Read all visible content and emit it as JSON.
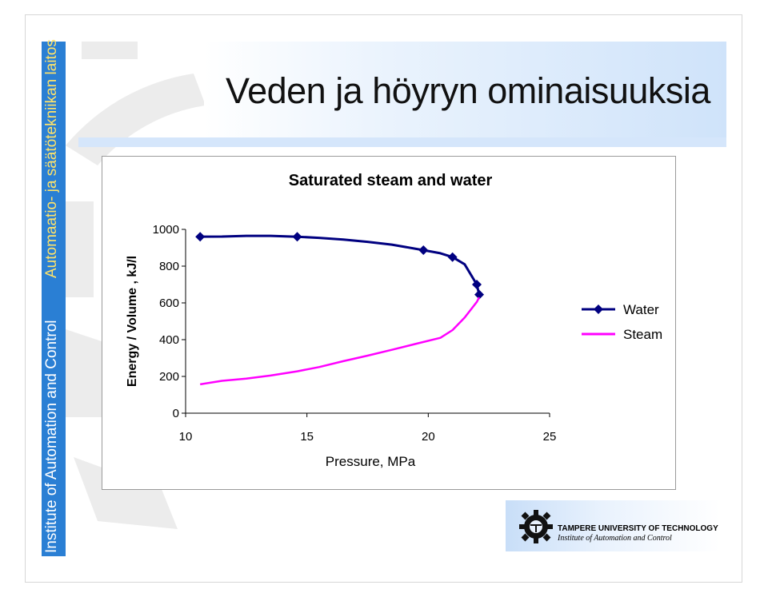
{
  "slide": {
    "title": "Veden ja höyryn ominaisuuksia",
    "side_text_institute": "Institute of Automation and Control",
    "side_text_laitos": "Automaatio- ja säätötekniikan laitos"
  },
  "footer": {
    "university": "TAMPERE UNIVERSITY OF TECHNOLOGY",
    "department": "Institute of Automation and Control"
  },
  "colors": {
    "water": "#000080",
    "steam": "#ff00ff",
    "side_bar": "#2a7fd4",
    "accent_text": "#ffe36a"
  },
  "chart_data": {
    "type": "line",
    "title": "Saturated steam and water",
    "xlabel": "Pressure,  MPa",
    "ylabel": "Energy / Volume , kJ/l",
    "xlim": [
      10,
      25
    ],
    "ylim": [
      0,
      1000
    ],
    "x_ticks": [
      "10",
      "15",
      "20",
      "25"
    ],
    "y_ticks": [
      "1000",
      "800",
      "600",
      "400",
      "200",
      "0"
    ],
    "grid": false,
    "legend_position": "right",
    "series": [
      {
        "name": "Water",
        "marker": "diamond",
        "points": [
          [
            10.6,
            960
          ],
          [
            11.5,
            961
          ],
          [
            12.5,
            965
          ],
          [
            13.5,
            965
          ],
          [
            14.6,
            960
          ],
          [
            15.5,
            954
          ],
          [
            16.5,
            945
          ],
          [
            17.5,
            932
          ],
          [
            18.5,
            917
          ],
          [
            19.8,
            887
          ],
          [
            20.5,
            870
          ],
          [
            21.0,
            849
          ],
          [
            21.5,
            810
          ],
          [
            22.0,
            700
          ],
          [
            22.1,
            645
          ]
        ],
        "marker_points": [
          [
            10.6,
            960
          ],
          [
            14.6,
            960
          ],
          [
            19.8,
            887
          ],
          [
            21.0,
            849
          ],
          [
            22.0,
            700
          ],
          [
            22.1,
            645
          ]
        ]
      },
      {
        "name": "Steam",
        "marker": "none",
        "points": [
          [
            10.6,
            157
          ],
          [
            11.5,
            176
          ],
          [
            12.5,
            188
          ],
          [
            13.5,
            205
          ],
          [
            14.6,
            228
          ],
          [
            15.5,
            251
          ],
          [
            16.5,
            283
          ],
          [
            17.5,
            313
          ],
          [
            18.5,
            345
          ],
          [
            19.5,
            378
          ],
          [
            20.5,
            410
          ],
          [
            21.0,
            452
          ],
          [
            21.5,
            520
          ],
          [
            22.0,
            605
          ],
          [
            22.1,
            630
          ]
        ]
      }
    ]
  }
}
